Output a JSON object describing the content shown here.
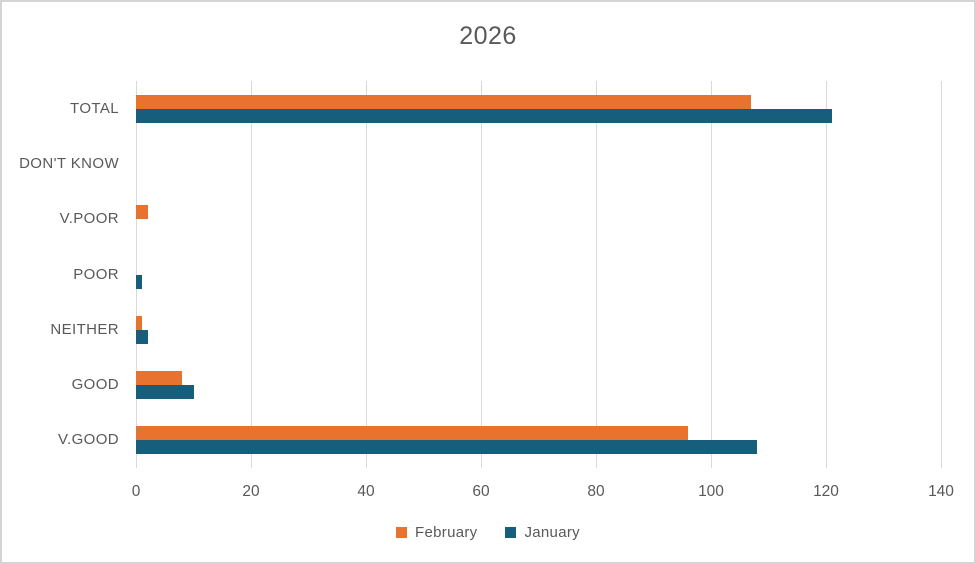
{
  "title": "2026",
  "colors": {
    "february": "#E8732E",
    "january": "#175E7D",
    "gridline": "#D9D9D9",
    "text": "#595959",
    "border": "#D4D4D4",
    "background": "#FFFFFF"
  },
  "legend": {
    "position": "bottom",
    "items": [
      {
        "label": "February",
        "color": "#E8732E"
      },
      {
        "label": "January",
        "color": "#175E7D"
      }
    ]
  },
  "chart_data": {
    "type": "bar",
    "orientation": "horizontal",
    "title": "2026",
    "categories": [
      "TOTAL",
      "DON'T KNOW",
      "V.POOR",
      "POOR",
      "NEITHER",
      "GOOD",
      "V.GOOD"
    ],
    "series": [
      {
        "name": "February",
        "color": "#E8732E",
        "values": [
          107,
          0,
          2,
          0,
          1,
          8,
          96
        ]
      },
      {
        "name": "January",
        "color": "#175E7D",
        "values": [
          121,
          0,
          0,
          1,
          2,
          10,
          108
        ]
      }
    ],
    "xlabel": "",
    "ylabel": "",
    "xlim": [
      0,
      140
    ],
    "xticks": [
      0,
      20,
      40,
      60,
      80,
      100,
      120,
      140
    ],
    "grid": true,
    "legend_position": "bottom"
  }
}
